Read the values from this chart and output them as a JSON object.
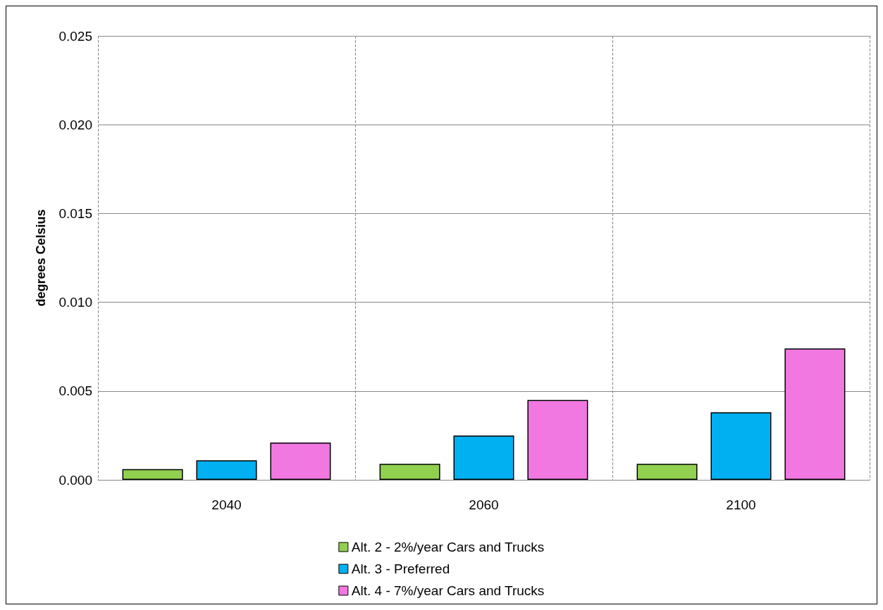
{
  "chart_data": {
    "type": "bar",
    "ylabel": "degrees Celsius",
    "categories": [
      "2040",
      "2060",
      "2100"
    ],
    "series": [
      {
        "name": "Alt. 2 - 2%/year Cars and Trucks",
        "color": "#92d050",
        "values": [
          0.0006,
          0.0009,
          0.0009
        ]
      },
      {
        "name": "Alt. 3 - Preferred",
        "color": "#00b0f0",
        "values": [
          0.0011,
          0.0025,
          0.0038
        ]
      },
      {
        "name": "Alt. 4 - 7%/year Cars and Trucks",
        "color": "#f078e0",
        "values": [
          0.0021,
          0.0045,
          0.0074
        ]
      }
    ],
    "ylim": [
      0,
      0.025
    ],
    "yticks": [
      {
        "value": 0,
        "label": "0.000"
      },
      0.005,
      {
        "value": 0.01,
        "label": "0.010"
      },
      0.015,
      {
        "value": 0.02,
        "label": "0.020"
      },
      0.025
    ],
    "grid": true,
    "legend": "bottom"
  }
}
